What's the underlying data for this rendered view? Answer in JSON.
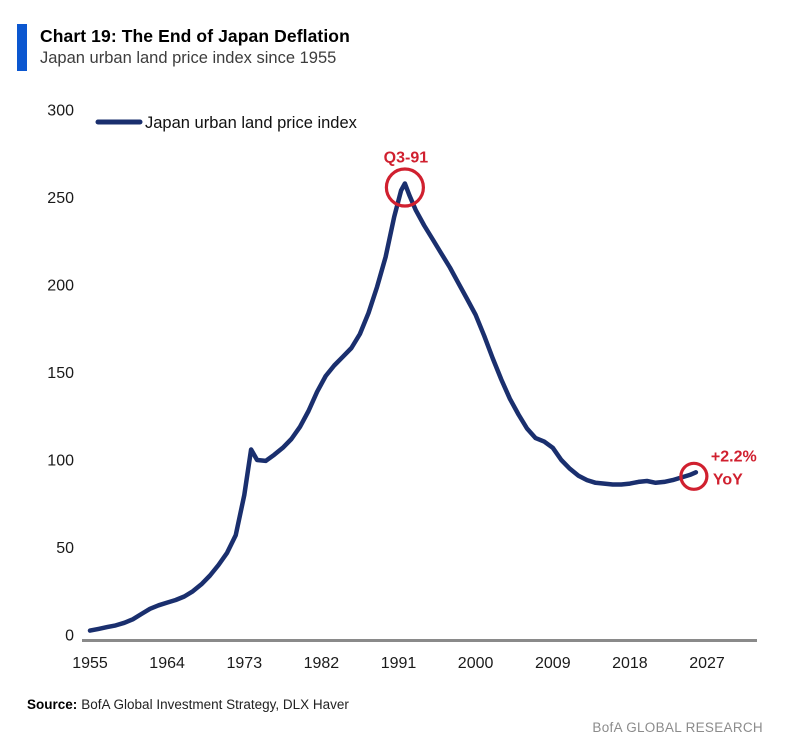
{
  "header": {
    "title": "Chart 19: The End of Japan Deflation",
    "subtitle": "Japan urban land price index since 1955"
  },
  "legend": {
    "label": "Japan urban land price index"
  },
  "annotations": {
    "peak": {
      "label": "Q3-91",
      "year": 1991.75,
      "value": 258
    },
    "latest": {
      "label_line1": "+2.2%",
      "label_line2": "YoY",
      "year": 2025.7,
      "value": 93
    }
  },
  "footer": {
    "source_label": "Source:",
    "source_text": "BofA Global Investment Strategy, DLX Haver",
    "brand": "BofA GLOBAL RESEARCH"
  },
  "colors": {
    "line": "#1a2f6e",
    "accent_red": "#d0202f",
    "accent_bar_blue": "#0b57d0",
    "axis_gray": "#8a8a8a",
    "brand_gray": "#8c8c8c"
  },
  "chart_data": {
    "type": "line",
    "title": "Japan urban land price index since 1955",
    "xlabel": "",
    "ylabel": "",
    "xlim": [
      1955,
      2027
    ],
    "ylim": [
      0,
      300
    ],
    "x_ticks": [
      1955,
      1964,
      1973,
      1982,
      1991,
      2000,
      2009,
      2018,
      2027
    ],
    "y_ticks": [
      0,
      50,
      100,
      150,
      200,
      250,
      300
    ],
    "grid": false,
    "legend_position": "top-left",
    "series": [
      {
        "name": "Japan urban land price index",
        "points": [
          [
            1955,
            2.5
          ],
          [
            1956,
            3.5
          ],
          [
            1957,
            4.5
          ],
          [
            1958,
            5.5
          ],
          [
            1959,
            7
          ],
          [
            1960,
            9
          ],
          [
            1961,
            12
          ],
          [
            1962,
            15
          ],
          [
            1963,
            17
          ],
          [
            1964,
            18.5
          ],
          [
            1965,
            20
          ],
          [
            1966,
            22
          ],
          [
            1967,
            25
          ],
          [
            1968,
            29
          ],
          [
            1969,
            34
          ],
          [
            1970,
            40
          ],
          [
            1971,
            47
          ],
          [
            1972,
            57
          ],
          [
            1973,
            80
          ],
          [
            1973.8,
            106
          ],
          [
            1974.5,
            100
          ],
          [
            1975.5,
            99.5
          ],
          [
            1976.5,
            103
          ],
          [
            1977.5,
            107
          ],
          [
            1978.5,
            112
          ],
          [
            1979.5,
            119
          ],
          [
            1980.5,
            128
          ],
          [
            1981.5,
            139
          ],
          [
            1982.5,
            148
          ],
          [
            1983.5,
            154
          ],
          [
            1984.5,
            159
          ],
          [
            1985.5,
            164
          ],
          [
            1986.5,
            172
          ],
          [
            1987.5,
            184
          ],
          [
            1988.5,
            199
          ],
          [
            1989.5,
            216
          ],
          [
            1990.5,
            239
          ],
          [
            1991.3,
            254
          ],
          [
            1991.75,
            258
          ],
          [
            1992.3,
            251
          ],
          [
            1993,
            243
          ],
          [
            1994,
            234
          ],
          [
            1995,
            226
          ],
          [
            1996,
            218
          ],
          [
            1997,
            210
          ],
          [
            1998,
            201
          ],
          [
            1999,
            192
          ],
          [
            2000,
            183
          ],
          [
            2001,
            171
          ],
          [
            2002,
            158
          ],
          [
            2003,
            146
          ],
          [
            2004,
            135
          ],
          [
            2005,
            126
          ],
          [
            2006,
            118
          ],
          [
            2007,
            112.5
          ],
          [
            2008,
            110.5
          ],
          [
            2009,
            107
          ],
          [
            2010,
            100
          ],
          [
            2011,
            95
          ],
          [
            2012,
            91
          ],
          [
            2013,
            88.5
          ],
          [
            2014,
            87
          ],
          [
            2015,
            86.5
          ],
          [
            2016,
            86
          ],
          [
            2017,
            86
          ],
          [
            2018,
            86.5
          ],
          [
            2019,
            87.5
          ],
          [
            2020,
            88
          ],
          [
            2021,
            87
          ],
          [
            2022,
            87.5
          ],
          [
            2023,
            88.5
          ],
          [
            2024,
            90
          ],
          [
            2025,
            91.5
          ],
          [
            2025.7,
            93
          ]
        ]
      }
    ]
  }
}
